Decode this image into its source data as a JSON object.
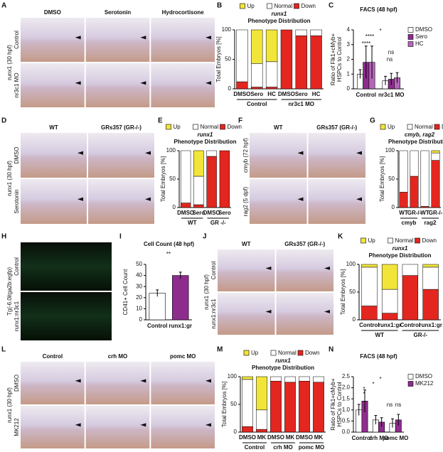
{
  "panel_labels": [
    "A",
    "B",
    "C",
    "D",
    "E",
    "F",
    "G",
    "H",
    "I",
    "J",
    "K",
    "L",
    "M",
    "N"
  ],
  "image_panels": [
    {
      "columns": [
        "DMSO",
        "Serotonin",
        "Hydrocortisone"
      ],
      "rows": [
        "Control",
        "nr3c1 MO"
      ],
      "side_label": "runx1 (30 hpf)"
    },
    {
      "columns": [
        "WT",
        "GRs357 (GR-/-)"
      ],
      "rows": [
        "DMSO",
        "Serotonin"
      ],
      "side_label": "runx1 (30 hpf)"
    },
    {
      "columns": [
        "WT",
        "GRs357 (GR-/-)"
      ],
      "rows": [
        "cmyb (72 hpf)",
        "rag2 (5 dpf)"
      ]
    },
    {
      "rows": [
        "Control",
        "runx1:nr3c1"
      ],
      "side_label": "Tg(-6.0itga2b:egfp)"
    },
    {
      "columns": [
        "WT",
        "GRs357 (GR-/-)"
      ],
      "rows": [
        "Control",
        "runx1:nr3c1"
      ],
      "side_label": "runx1 (30 hpf)"
    },
    {
      "columns": [
        "Control",
        "crh MO",
        "pomc MO"
      ],
      "rows": [
        "DMSO",
        "MK212"
      ],
      "side_label": "runx1 (30 hpf)"
    }
  ],
  "chart_data": [
    {
      "type": "stacked_bar",
      "title": "runx1",
      "subtitle": "Phenotype Distribution",
      "ylabel": "Total Embryos [%]",
      "categories": [
        "DMSO",
        "Sero",
        "HC",
        "DMSO",
        "Sero",
        "HC"
      ],
      "groups": [
        "Control",
        "nr3c1 MO"
      ],
      "series": [
        {
          "name": "Up",
          "color": "#f2e53a",
          "values": [
            0,
            57,
            54,
            0,
            0,
            0
          ]
        },
        {
          "name": "Normal",
          "color": "#ffffff",
          "values": [
            88,
            40,
            43,
            0,
            10,
            10
          ]
        },
        {
          "name": "Down",
          "color": "#e3261f",
          "values": [
            12,
            3,
            3,
            100,
            90,
            90
          ]
        }
      ],
      "ylim": [
        0,
        100
      ],
      "yticks": [
        0,
        50,
        100
      ]
    },
    {
      "type": "bar_error",
      "title": "FACS (48 hpf)",
      "ylabel": [
        "Ratio of Flk1+cMyb+",
        "HSPCs to Control"
      ],
      "categories": [
        "Control",
        "nr3c1 MO"
      ],
      "series": [
        {
          "name": "DMSO",
          "color": "#ffffff",
          "values": [
            1.0,
            0.55
          ],
          "errors": [
            0.3,
            0.3
          ]
        },
        {
          "name": "Sero",
          "color": "#8e2c8e",
          "values": [
            1.8,
            0.65
          ],
          "errors": [
            1.1,
            0.4
          ]
        },
        {
          "name": "HC",
          "color": "#b466b8",
          "values": [
            1.8,
            0.75
          ],
          "errors": [
            1.1,
            0.35
          ]
        }
      ],
      "annotations": [
        "****",
        "****",
        "*",
        "ns",
        "ns"
      ],
      "ylim": [
        0,
        4
      ],
      "yticks": [
        0,
        1,
        2,
        3,
        4
      ]
    },
    {
      "type": "stacked_bar",
      "title": "runx1",
      "subtitle": "Phenotype Distribution",
      "ylabel": "Total Embryos [%]",
      "categories": [
        "DMSO",
        "Sero",
        "DMSO",
        "Sero"
      ],
      "groups": [
        "WT",
        "GR -/-"
      ],
      "series": [
        {
          "name": "Up",
          "color": "#f2e53a",
          "values": [
            0,
            45,
            0,
            0
          ]
        },
        {
          "name": "Normal",
          "color": "#ffffff",
          "values": [
            92,
            50,
            10,
            0
          ]
        },
        {
          "name": "Down",
          "color": "#e3261f",
          "values": [
            8,
            5,
            90,
            100
          ]
        }
      ],
      "ylim": [
        0,
        100
      ],
      "yticks": [
        0,
        50,
        100
      ]
    },
    {
      "type": "stacked_bar",
      "title": "cmyb, rag2",
      "subtitle": "Phenotype Distribution",
      "ylabel": "Total Embryos [%]",
      "categories": [
        "WT",
        "GR-/-",
        "WT",
        "GR-/-"
      ],
      "groups": [
        "cmyb",
        "rag2"
      ],
      "series": [
        {
          "name": "Up",
          "color": "#f2e53a",
          "values": [
            0,
            0,
            0,
            4
          ]
        },
        {
          "name": "Normal",
          "color": "#ffffff",
          "values": [
            73,
            45,
            98,
            13
          ]
        },
        {
          "name": "Down",
          "color": "#e3261f",
          "values": [
            27,
            55,
            2,
            83
          ]
        }
      ],
      "ylim": [
        0,
        100
      ],
      "yticks": [
        0,
        50,
        100
      ]
    },
    {
      "type": "bar_error",
      "title": "Cell Count (48 hpf)",
      "ylabel": [
        "CD41+ Cell Count"
      ],
      "categories": [
        "Control",
        "runx1:gr"
      ],
      "values": [
        24,
        40
      ],
      "errors": [
        3,
        3
      ],
      "colors": [
        "#ffffff",
        "#8e2c8e"
      ],
      "annotations": [
        "**"
      ],
      "ylim": [
        0,
        50
      ],
      "yticks": [
        0,
        10,
        20,
        30,
        40,
        50
      ]
    },
    {
      "type": "stacked_bar",
      "title": "runx1",
      "subtitle": "Phenotype Distribution",
      "ylabel": "Total Embryos [%]",
      "categories": [
        "Control",
        "runx1:gr",
        "Control",
        "runx1:gr"
      ],
      "groups": [
        "WT",
        "GR-/-"
      ],
      "series": [
        {
          "name": "Up",
          "color": "#f2e53a",
          "values": [
            5,
            45,
            0,
            5
          ]
        },
        {
          "name": "Normal",
          "color": "#ffffff",
          "values": [
            70,
            43,
            20,
            40
          ]
        },
        {
          "name": "Down",
          "color": "#e3261f",
          "values": [
            25,
            12,
            80,
            55
          ]
        }
      ],
      "ylim": [
        0,
        100
      ],
      "yticks": [
        0,
        50,
        100
      ]
    },
    {
      "type": "stacked_bar",
      "title": "runx1",
      "subtitle": "Phenotype Distribution",
      "ylabel": "Total Embryos [%]",
      "categories": [
        "DMSO",
        "MK",
        "DMSO",
        "MK",
        "DMSO",
        "MK"
      ],
      "groups": [
        "Control",
        "crh MO",
        "pomc MO"
      ],
      "series": [
        {
          "name": "Up",
          "color": "#f2e53a",
          "values": [
            5,
            60,
            0,
            0,
            0,
            0
          ]
        },
        {
          "name": "Normal",
          "color": "#ffffff",
          "values": [
            85,
            35,
            8,
            10,
            8,
            10
          ]
        },
        {
          "name": "Down",
          "color": "#e3261f",
          "values": [
            10,
            5,
            92,
            90,
            92,
            90
          ]
        }
      ],
      "ylim": [
        0,
        100
      ],
      "yticks": [
        0,
        50,
        100
      ]
    },
    {
      "type": "bar_error",
      "title": "FACS (48 hpf)",
      "ylabel": [
        "Ratio of Flk1+cMyb+",
        "HSPCs to Control"
      ],
      "categories": [
        "Control",
        "crh MO",
        "pomc MO"
      ],
      "series": [
        {
          "name": "DMSO",
          "color": "#ffffff",
          "values": [
            1.0,
            0.55,
            0.4
          ],
          "errors": [
            0.25,
            0.2,
            0.2
          ]
        },
        {
          "name": "MK212",
          "color": "#8e2c8e",
          "values": [
            1.4,
            0.45,
            0.55
          ],
          "errors": [
            0.5,
            0.2,
            0.25
          ]
        }
      ],
      "annotations": [
        "*",
        "*",
        "*",
        "*",
        "ns",
        "ns"
      ],
      "ylim": [
        0,
        2.5
      ],
      "yticks": [
        {
          "value": 0,
          "label": "0.0"
        },
        {
          "value": 0.5,
          "label": "0.5"
        },
        {
          "value": 1,
          "label": "1.0"
        },
        {
          "value": 1.5,
          "label": "1.5"
        },
        {
          "value": 2,
          "label": "2.0"
        },
        {
          "value": 2.5,
          "label": "2.5"
        }
      ]
    }
  ]
}
